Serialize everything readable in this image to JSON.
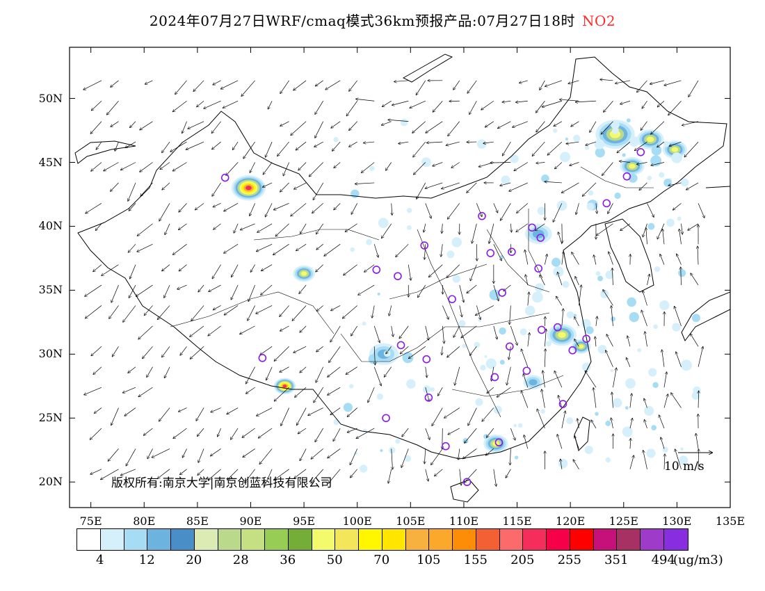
{
  "title": {
    "main": "2024年07月27日WRF/cmaq模式36km预报产品:07月27日18时",
    "variable": "NO2",
    "variable_color": "#ff2a2a"
  },
  "lat_labels": [
    "50N",
    "45N",
    "40N",
    "35N",
    "30N",
    "25N",
    "20N"
  ],
  "lon_labels": [
    "75E",
    "80E",
    "85E",
    "90E",
    "95E",
    "100E",
    "105E",
    "110E",
    "115E",
    "120E",
    "125E",
    "130E",
    "135E"
  ],
  "copyright": "版权所有:南京大学|南京创蓝科技有限公司",
  "wind_scale_label": "10 m/s",
  "colorbar": {
    "unit": "(ug/m3)",
    "colors": [
      "#ffffff",
      "#d6f0fb",
      "#a7dcf5",
      "#6cb3e0",
      "#4a8ec8",
      "#dcebb4",
      "#bbd98a",
      "#c5e082",
      "#97cd55",
      "#74ad38",
      "#f3fa6b",
      "#f4e65a",
      "#fff700",
      "#ffe500",
      "#f7b13f",
      "#fca82b",
      "#fd8c07",
      "#f26034",
      "#fc6a6b",
      "#f52d5a",
      "#f6004a",
      "#fe0000",
      "#c6117a",
      "#a83163",
      "#9e3bc9",
      "#882de0"
    ],
    "labels": [
      "4",
      "12",
      "20",
      "28",
      "36",
      "50",
      "70",
      "105",
      "155",
      "205",
      "255",
      "351",
      "494"
    ]
  },
  "map": {
    "lon_range": [
      73,
      135
    ],
    "lat_range": [
      18,
      54
    ],
    "stations": [
      {
        "lon": 87.6,
        "lat": 43.8
      },
      {
        "lon": 126.6,
        "lat": 45.8
      },
      {
        "lon": 125.3,
        "lat": 43.9
      },
      {
        "lon": 123.4,
        "lat": 41.8
      },
      {
        "lon": 111.7,
        "lat": 40.8
      },
      {
        "lon": 116.4,
        "lat": 39.9
      },
      {
        "lon": 117.2,
        "lat": 39.1
      },
      {
        "lon": 106.3,
        "lat": 38.5
      },
      {
        "lon": 112.5,
        "lat": 37.9
      },
      {
        "lon": 114.5,
        "lat": 38.0
      },
      {
        "lon": 117.0,
        "lat": 36.7
      },
      {
        "lon": 101.8,
        "lat": 36.6
      },
      {
        "lon": 103.8,
        "lat": 36.1
      },
      {
        "lon": 108.9,
        "lat": 34.3
      },
      {
        "lon": 113.6,
        "lat": 34.8
      },
      {
        "lon": 117.3,
        "lat": 31.9
      },
      {
        "lon": 118.8,
        "lat": 32.1
      },
      {
        "lon": 121.5,
        "lat": 31.2
      },
      {
        "lon": 120.2,
        "lat": 30.3
      },
      {
        "lon": 114.3,
        "lat": 30.6
      },
      {
        "lon": 104.1,
        "lat": 30.7
      },
      {
        "lon": 106.5,
        "lat": 29.6
      },
      {
        "lon": 91.1,
        "lat": 29.7
      },
      {
        "lon": 115.9,
        "lat": 28.7
      },
      {
        "lon": 112.9,
        "lat": 28.2
      },
      {
        "lon": 106.7,
        "lat": 26.6
      },
      {
        "lon": 119.3,
        "lat": 26.1
      },
      {
        "lon": 102.7,
        "lat": 25.0
      },
      {
        "lon": 113.3,
        "lat": 23.1
      },
      {
        "lon": 108.3,
        "lat": 22.8
      },
      {
        "lon": 110.3,
        "lat": 20.0
      }
    ],
    "hotspots": [
      {
        "lon": 89.8,
        "lat": 43.0,
        "r": 1.4,
        "level": "high"
      },
      {
        "lon": 95.0,
        "lat": 36.3,
        "r": 0.9,
        "level": "mid"
      },
      {
        "lon": 93.2,
        "lat": 27.5,
        "r": 0.9,
        "level": "high"
      },
      {
        "lon": 124.2,
        "lat": 47.2,
        "r": 1.6,
        "level": "mid"
      },
      {
        "lon": 127.5,
        "lat": 46.8,
        "r": 1.1,
        "level": "mid"
      },
      {
        "lon": 129.8,
        "lat": 46.0,
        "r": 1.0,
        "level": "mid"
      },
      {
        "lon": 125.8,
        "lat": 44.7,
        "r": 1.0,
        "level": "mid"
      },
      {
        "lon": 119.2,
        "lat": 31.5,
        "r": 1.2,
        "level": "mid"
      },
      {
        "lon": 121.0,
        "lat": 30.6,
        "r": 0.8,
        "level": "mid"
      },
      {
        "lon": 102.5,
        "lat": 30.0,
        "r": 1.2,
        "level": "low"
      },
      {
        "lon": 113.0,
        "lat": 23.0,
        "r": 1.0,
        "level": "mid"
      },
      {
        "lon": 116.5,
        "lat": 27.8,
        "r": 0.8,
        "level": "low"
      },
      {
        "lon": 117.0,
        "lat": 39.4,
        "r": 1.1,
        "level": "low"
      }
    ]
  }
}
